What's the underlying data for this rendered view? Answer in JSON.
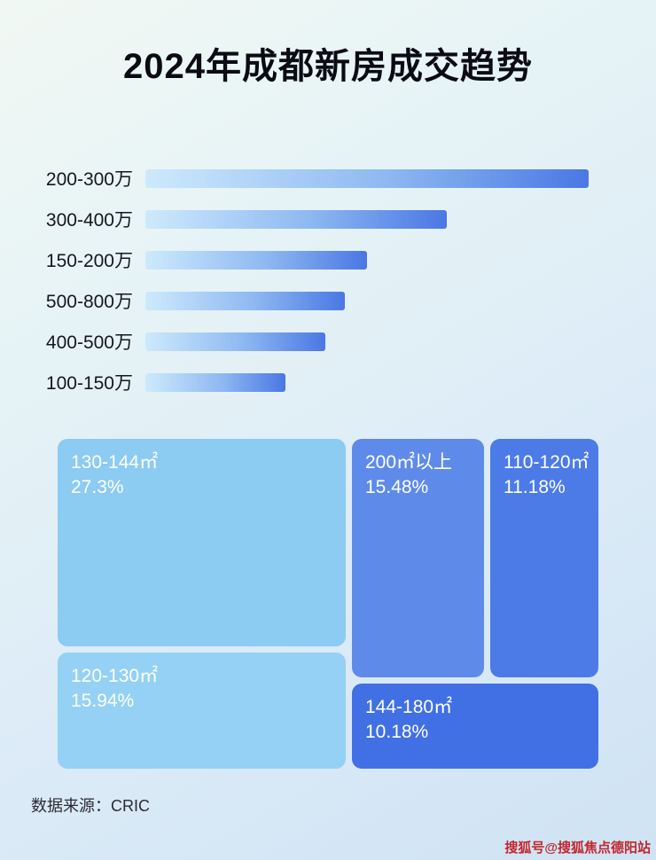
{
  "header": {
    "title": "2024年成都新房成交趋势"
  },
  "footer": {
    "source_label": "数据来源：CRIC"
  },
  "watermark": {
    "text": "搜狐号@搜狐焦点德阳站"
  },
  "colors": {
    "bar_gradient_start": "#cdeafc",
    "bar_gradient_end": "#4a77e4",
    "watermark_red": "#c1272d",
    "background_top": "#f1f8f3",
    "background_bottom": "#cfe3f4"
  },
  "chart_data": [
    {
      "type": "bar",
      "orientation": "horizontal",
      "title": "2024年成都新房成交趋势（价格段）",
      "xlabel": "",
      "ylabel": "",
      "categories": [
        "200-300万",
        "300-400万",
        "150-200万",
        "500-800万",
        "400-500万",
        "100-150万"
      ],
      "values": [
        100,
        68,
        50,
        45,
        40.5,
        31.5
      ],
      "value_unit": "estimated percent of longest bar (no numeric labels shown)",
      "grid": false,
      "legend": false
    },
    {
      "type": "treemap",
      "title": "2024年成都新房成交趋势（面积段占比）",
      "items": [
        {
          "label": "130-144㎡",
          "pct": "27.3%",
          "value": 27.3,
          "color": "#8ccbf2"
        },
        {
          "label": "200㎡以上",
          "pct": "15.48%",
          "value": 15.48,
          "color": "#5e8bea"
        },
        {
          "label": "110-120㎡",
          "pct": "11.18%",
          "value": 11.18,
          "color": "#4c7be8"
        },
        {
          "label": "120-130㎡",
          "pct": "15.94%",
          "value": 15.94,
          "color": "#94d1f4"
        },
        {
          "label": "144-180㎡",
          "pct": "10.18%",
          "value": 10.18,
          "color": "#4170e4"
        }
      ]
    }
  ]
}
